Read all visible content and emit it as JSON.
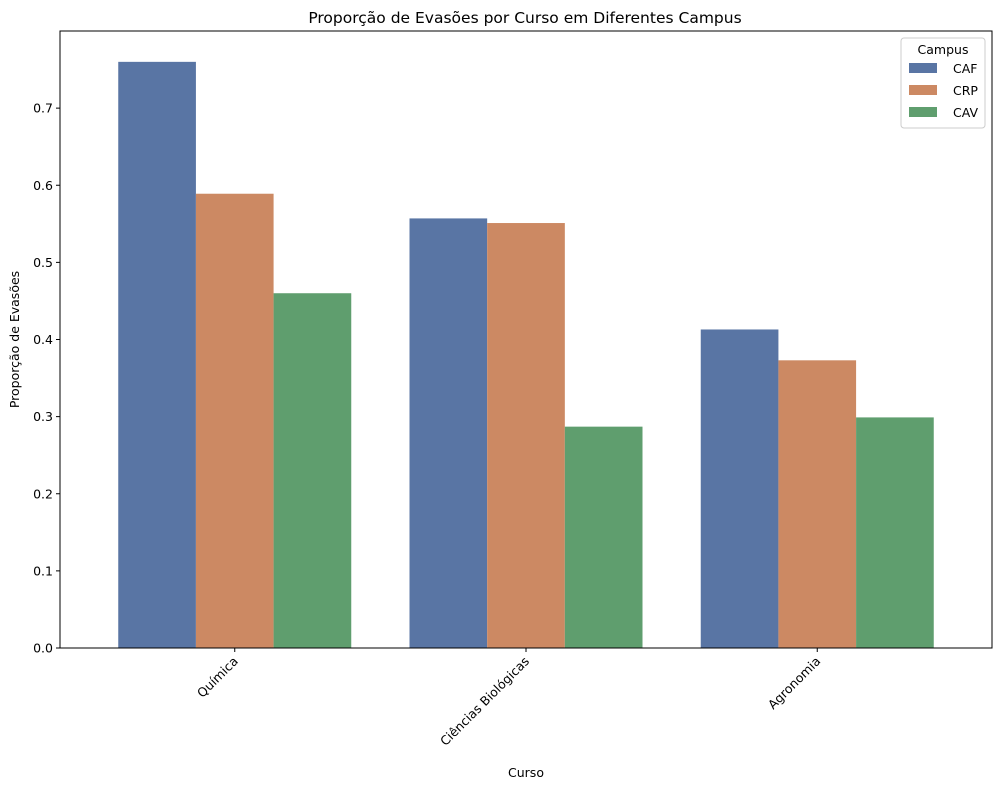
{
  "chart_data": {
    "type": "bar",
    "title": "Proporção de Evasões por Curso em Diferentes Campus",
    "xlabel": "Curso",
    "ylabel": "Proporção de Evasões",
    "categories": [
      "Química",
      "Ciências Biológicas",
      "Agronomia"
    ],
    "series": [
      {
        "name": "CAF",
        "color": "#5975a4",
        "values": [
          0.76,
          0.557,
          0.413
        ]
      },
      {
        "name": "CRP",
        "color": "#cc8963",
        "values": [
          0.589,
          0.551,
          0.373
        ]
      },
      {
        "name": "CAV",
        "color": "#5f9e6e",
        "values": [
          0.46,
          0.287,
          0.299
        ]
      }
    ],
    "ylim": [
      0,
      0.8
    ],
    "yticks": [
      "0.0",
      "0.1",
      "0.2",
      "0.3",
      "0.4",
      "0.5",
      "0.6",
      "0.7"
    ],
    "legend": {
      "title": "Campus",
      "position": "top-right"
    },
    "grid": false
  }
}
